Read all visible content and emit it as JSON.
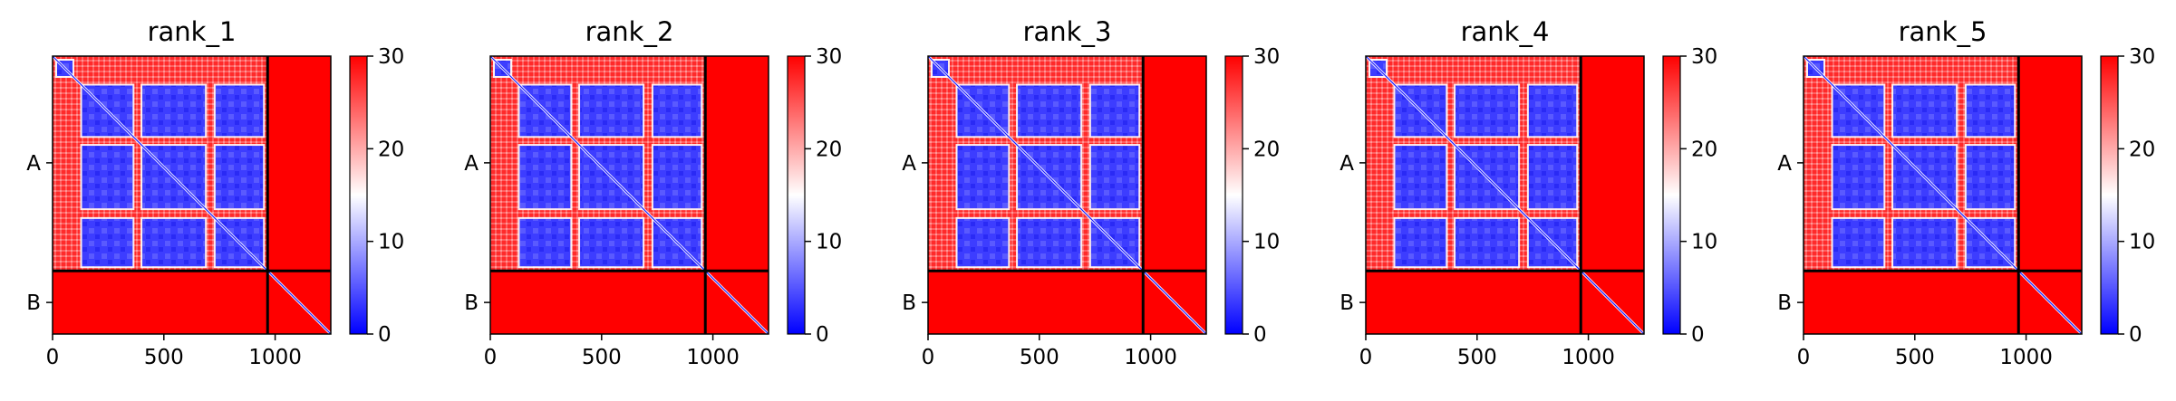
{
  "chart_data": [
    {
      "type": "heatmap",
      "title": "rank_1",
      "xlabel": "",
      "ylabel": "",
      "xlim": [
        0,
        1250
      ],
      "ylim": [
        1250,
        0
      ],
      "x_ticks": [
        0,
        500,
        1000
      ],
      "y_tick_labels": [
        {
          "label": "A",
          "value": 480
        },
        {
          "label": "B",
          "value": 1108
        }
      ],
      "chain_boundary": 966,
      "colorbar": {
        "colormap": "bwr",
        "min": 0,
        "max": 30,
        "ticks": [
          0,
          10,
          20,
          30
        ]
      }
    },
    {
      "type": "heatmap",
      "title": "rank_2",
      "xlabel": "",
      "ylabel": "",
      "xlim": [
        0,
        1250
      ],
      "ylim": [
        1250,
        0
      ],
      "x_ticks": [
        0,
        500,
        1000
      ],
      "y_tick_labels": [
        {
          "label": "A",
          "value": 480
        },
        {
          "label": "B",
          "value": 1108
        }
      ],
      "chain_boundary": 966,
      "colorbar": {
        "colormap": "bwr",
        "min": 0,
        "max": 30,
        "ticks": [
          0,
          10,
          20,
          30
        ]
      }
    },
    {
      "type": "heatmap",
      "title": "rank_3",
      "xlabel": "",
      "ylabel": "",
      "xlim": [
        0,
        1250
      ],
      "ylim": [
        1250,
        0
      ],
      "x_ticks": [
        0,
        500,
        1000
      ],
      "y_tick_labels": [
        {
          "label": "A",
          "value": 480
        },
        {
          "label": "B",
          "value": 1108
        }
      ],
      "chain_boundary": 966,
      "colorbar": {
        "colormap": "bwr",
        "min": 0,
        "max": 30,
        "ticks": [
          0,
          10,
          20,
          30
        ]
      }
    },
    {
      "type": "heatmap",
      "title": "rank_4",
      "xlabel": "",
      "ylabel": "",
      "xlim": [
        0,
        1250
      ],
      "ylim": [
        1250,
        0
      ],
      "x_ticks": [
        0,
        500,
        1000
      ],
      "y_tick_labels": [
        {
          "label": "A",
          "value": 480
        },
        {
          "label": "B",
          "value": 1108
        }
      ],
      "chain_boundary": 966,
      "colorbar": {
        "colormap": "bwr",
        "min": 0,
        "max": 30,
        "ticks": [
          0,
          10,
          20,
          30
        ]
      }
    },
    {
      "type": "heatmap",
      "title": "rank_5",
      "xlabel": "",
      "ylabel": "",
      "xlim": [
        0,
        1250
      ],
      "ylim": [
        1250,
        0
      ],
      "x_ticks": [
        0,
        500,
        1000
      ],
      "y_tick_labels": [
        {
          "label": "A",
          "value": 480
        },
        {
          "label": "B",
          "value": 1108
        }
      ],
      "chain_boundary": 966,
      "colorbar": {
        "colormap": "bwr",
        "min": 0,
        "max": 30,
        "ticks": [
          0,
          10,
          20,
          30
        ]
      }
    }
  ]
}
